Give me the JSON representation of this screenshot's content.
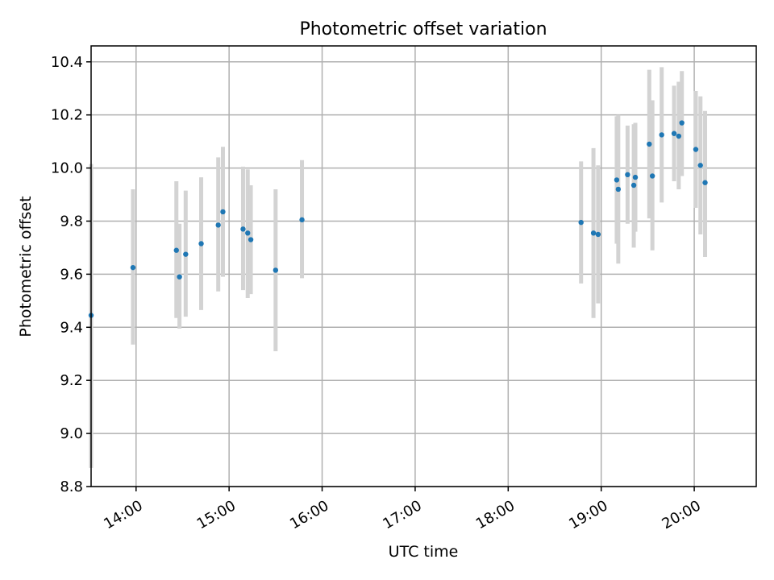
{
  "chart_data": {
    "type": "scatter",
    "title": "Photometric offset variation",
    "xlabel": "UTC time",
    "ylabel": "Photometric offset",
    "xlim": [
      "13:31",
      "20:40"
    ],
    "ylim": [
      8.8,
      10.46
    ],
    "x_ticks": [
      "14:00",
      "15:00",
      "16:00",
      "17:00",
      "18:00",
      "19:00",
      "20:00"
    ],
    "y_ticks": [
      8.8,
      9.0,
      9.2,
      9.4,
      9.6,
      9.8,
      10.0,
      10.2,
      10.4
    ],
    "grid": true,
    "point_color": "#1f77b4",
    "errorbar_color": "#d3d3d3",
    "points": [
      {
        "t": "13:31",
        "y": 9.445,
        "lo": 8.87,
        "hi": 10.015
      },
      {
        "t": "13:58",
        "y": 9.625,
        "lo": 9.335,
        "hi": 9.92
      },
      {
        "t": "14:26",
        "y": 9.69,
        "lo": 9.435,
        "hi": 9.95
      },
      {
        "t": "14:28",
        "y": 9.59,
        "lo": 9.395,
        "hi": 9.79
      },
      {
        "t": "14:32",
        "y": 9.675,
        "lo": 9.44,
        "hi": 9.915
      },
      {
        "t": "14:42",
        "y": 9.715,
        "lo": 9.465,
        "hi": 9.965
      },
      {
        "t": "14:53",
        "y": 9.785,
        "lo": 9.535,
        "hi": 10.04
      },
      {
        "t": "14:56",
        "y": 9.835,
        "lo": 9.59,
        "hi": 10.08
      },
      {
        "t": "15:09",
        "y": 9.77,
        "lo": 9.54,
        "hi": 10.005
      },
      {
        "t": "15:12",
        "y": 9.755,
        "lo": 9.51,
        "hi": 9.995
      },
      {
        "t": "15:14",
        "y": 9.73,
        "lo": 9.525,
        "hi": 9.935
      },
      {
        "t": "15:30",
        "y": 9.615,
        "lo": 9.31,
        "hi": 9.92
      },
      {
        "t": "15:47",
        "y": 9.805,
        "lo": 9.585,
        "hi": 10.03
      },
      {
        "t": "18:47",
        "y": 9.795,
        "lo": 9.565,
        "hi": 10.025
      },
      {
        "t": "18:55",
        "y": 9.755,
        "lo": 9.435,
        "hi": 10.075
      },
      {
        "t": "18:58",
        "y": 9.75,
        "lo": 9.49,
        "hi": 10.01
      },
      {
        "t": "19:10",
        "y": 9.955,
        "lo": 9.715,
        "hi": 10.195
      },
      {
        "t": "19:11",
        "y": 9.92,
        "lo": 9.64,
        "hi": 10.2
      },
      {
        "t": "19:17",
        "y": 9.975,
        "lo": 9.79,
        "hi": 10.16
      },
      {
        "t": "19:21",
        "y": 9.935,
        "lo": 9.7,
        "hi": 10.165
      },
      {
        "t": "19:22",
        "y": 9.965,
        "lo": 9.76,
        "hi": 10.17
      },
      {
        "t": "19:31",
        "y": 10.09,
        "lo": 9.81,
        "hi": 10.37
      },
      {
        "t": "19:33",
        "y": 9.97,
        "lo": 9.69,
        "hi": 10.255
      },
      {
        "t": "19:39",
        "y": 10.125,
        "lo": 9.87,
        "hi": 10.38
      },
      {
        "t": "19:47",
        "y": 10.13,
        "lo": 9.95,
        "hi": 10.31
      },
      {
        "t": "19:50",
        "y": 10.12,
        "lo": 9.92,
        "hi": 10.325
      },
      {
        "t": "19:52",
        "y": 10.17,
        "lo": 9.97,
        "hi": 10.365
      },
      {
        "t": "20:01",
        "y": 10.07,
        "lo": 9.85,
        "hi": 10.29
      },
      {
        "t": "20:04",
        "y": 10.01,
        "lo": 9.75,
        "hi": 10.27
      },
      {
        "t": "20:07",
        "y": 9.945,
        "lo": 9.665,
        "hi": 10.215
      }
    ]
  }
}
